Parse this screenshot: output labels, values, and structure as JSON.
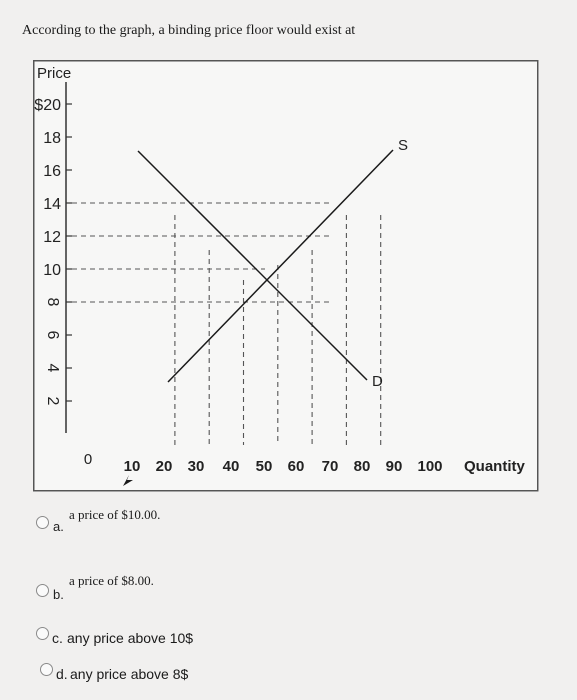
{
  "question": "According to the graph, a binding price floor would exist at",
  "chart_data": {
    "type": "line",
    "ylabel": "Price",
    "xlabel": "Quantity",
    "y_ticks": [
      "$20",
      "18",
      "16",
      "14",
      "12",
      "10",
      "8",
      "6",
      "4",
      "2"
    ],
    "x_ticks": [
      "0",
      "10",
      "20",
      "30",
      "40",
      "50",
      "60",
      "70",
      "80",
      "90",
      "100"
    ],
    "xlim": [
      0,
      100
    ],
    "ylim": [
      0,
      20
    ],
    "series": [
      {
        "name": "S",
        "x": [
          10,
          90
        ],
        "y": [
          4,
          18
        ]
      },
      {
        "name": "D",
        "x": [
          10,
          85
        ],
        "y": [
          18,
          4
        ]
      }
    ],
    "dashed_price_levels": [
      14,
      12,
      10,
      8
    ],
    "dashed_quantity_levels": [
      30,
      40,
      50,
      60,
      70,
      80,
      90
    ]
  },
  "options": [
    {
      "letter": "a.",
      "text": "a price of $10.00."
    },
    {
      "letter": "b.",
      "text": "a price of $8.00."
    },
    {
      "letter": "c.",
      "text": "any price above 10$"
    },
    {
      "letter": "d.",
      "text": "any price above 8$"
    }
  ]
}
